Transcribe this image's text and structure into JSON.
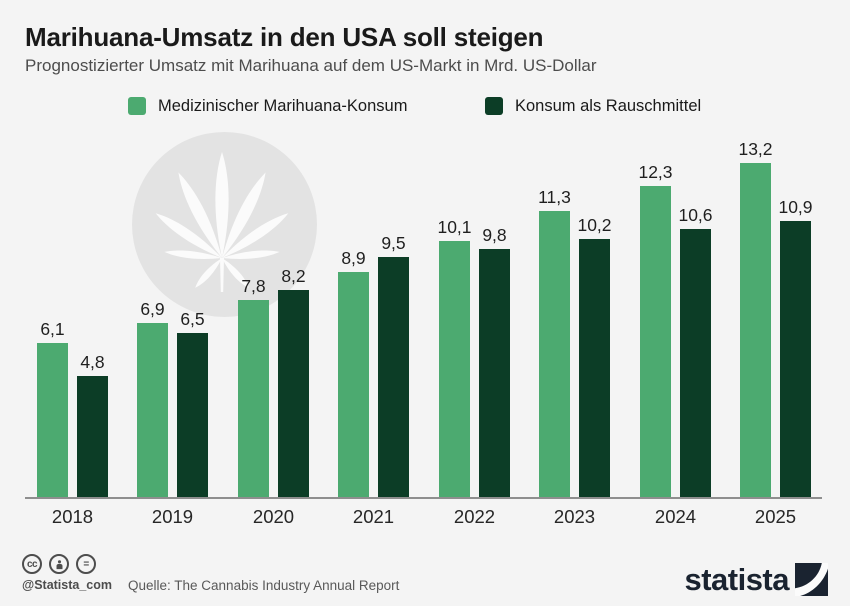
{
  "title": "Marihuana-Umsatz in den USA soll steigen",
  "subtitle": "Prognostizierter Umsatz mit Marihuana auf dem US-Markt in Mrd. US-Dollar",
  "legend": {
    "items": [
      {
        "label": "Medizinischer Marihuana-Konsum",
        "color": "#4caa70"
      },
      {
        "label": "Konsum als Rauschmittel",
        "color": "#0c3d26"
      }
    ]
  },
  "chart_data": {
    "type": "bar",
    "title": "Marihuana-Umsatz in den USA soll steigen",
    "subtitle": "Prognostizierter Umsatz mit Marihuana auf dem US-Markt in Mrd. US-Dollar",
    "categories": [
      "2018",
      "2019",
      "2020",
      "2021",
      "2022",
      "2023",
      "2024",
      "2025"
    ],
    "series": [
      {
        "name": "Medizinischer Marihuana-Konsum",
        "color": "#4caa70",
        "values": [
          6.1,
          6.9,
          7.8,
          8.9,
          10.1,
          11.3,
          12.3,
          13.2
        ]
      },
      {
        "name": "Konsum als Rauschmittel",
        "color": "#0c3d26",
        "values": [
          4.8,
          6.5,
          8.2,
          9.5,
          9.8,
          10.2,
          10.6,
          10.9
        ]
      }
    ],
    "unit": "Mrd. US-Dollar",
    "ylim": [
      0,
      14
    ],
    "value_labels": true,
    "decimal_separator": ",",
    "grid": false,
    "legend_position": "top",
    "watermark": "cannabis-leaf"
  },
  "footer": {
    "license_icons": [
      "cc",
      "attribution",
      "equal"
    ],
    "cc_label": "cc",
    "equal_label": "=",
    "handle": "@Statista_com",
    "source": "Quelle: The Cannabis Industry Annual Report",
    "logo_text": "statista"
  },
  "colors": {
    "background": "#f4f4f4",
    "medical_green": "#4caa70",
    "recreational_green": "#0c3d26",
    "axis": "#8e8e8e",
    "watermark_circle": "#e3e3e3",
    "watermark_leaf": "#fbfbfb",
    "logo_navy": "#1a2330"
  }
}
